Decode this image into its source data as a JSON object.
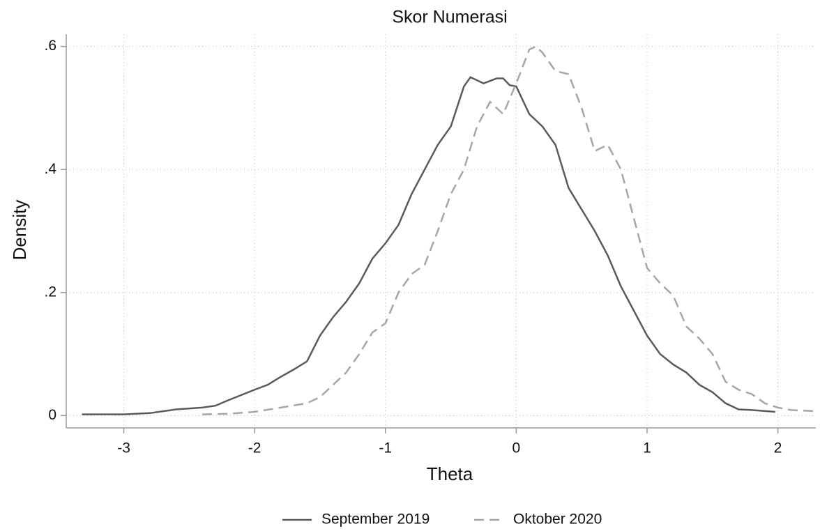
{
  "chart_data": {
    "type": "line",
    "title": "Skor Numerasi",
    "x_label": "Theta",
    "y_label": "Density",
    "xlim": [
      -3.44,
      2.29
    ],
    "ylim": [
      -0.02,
      0.62
    ],
    "xticks": [
      -3,
      -2,
      -1,
      0,
      1,
      2
    ],
    "yticks": [
      0,
      {
        "value": 0.2,
        "label": ".2"
      },
      {
        "value": 0.4,
        "label": ".4"
      },
      {
        "value": 0.6,
        "label": ".6"
      }
    ],
    "grid": true,
    "legend": "bottom",
    "series": [
      {
        "name": "September 2019",
        "color": "#5a5a5a",
        "style": "solid",
        "x": [
          -3.32,
          -3.0,
          -2.8,
          -2.6,
          -2.4,
          -2.3,
          -2.2,
          -2.0,
          -1.9,
          -1.8,
          -1.7,
          -1.6,
          -1.5,
          -1.4,
          -1.3,
          -1.2,
          -1.1,
          -1.0,
          -0.9,
          -0.8,
          -0.7,
          -0.6,
          -0.5,
          -0.4,
          -0.35,
          -0.25,
          -0.15,
          -0.1,
          -0.05,
          0.0,
          0.1,
          0.2,
          0.3,
          0.4,
          0.5,
          0.6,
          0.7,
          0.8,
          0.9,
          1.0,
          1.1,
          1.2,
          1.3,
          1.4,
          1.5,
          1.6,
          1.7,
          1.8,
          1.98
        ],
        "values": [
          0.002,
          0.002,
          0.004,
          0.01,
          0.013,
          0.016,
          0.025,
          0.042,
          0.05,
          0.063,
          0.075,
          0.088,
          0.13,
          0.16,
          0.185,
          0.215,
          0.255,
          0.28,
          0.31,
          0.36,
          0.4,
          0.44,
          0.47,
          0.535,
          0.55,
          0.54,
          0.548,
          0.548,
          0.537,
          0.535,
          0.49,
          0.47,
          0.44,
          0.37,
          0.335,
          0.3,
          0.26,
          0.21,
          0.17,
          0.13,
          0.1,
          0.083,
          0.07,
          0.05,
          0.038,
          0.02,
          0.01,
          0.009,
          0.006
        ]
      },
      {
        "name": "Oktober 2020",
        "color": "#a6a6a6",
        "style": "dashed",
        "x": [
          -2.4,
          -2.2,
          -2.0,
          -1.8,
          -1.6,
          -1.5,
          -1.4,
          -1.3,
          -1.2,
          -1.1,
          -1.0,
          -0.9,
          -0.8,
          -0.7,
          -0.6,
          -0.5,
          -0.4,
          -0.3,
          -0.2,
          -0.1,
          0.0,
          0.1,
          0.15,
          0.2,
          0.3,
          0.4,
          0.5,
          0.6,
          0.7,
          0.8,
          0.9,
          1.0,
          1.1,
          1.2,
          1.3,
          1.4,
          1.5,
          1.6,
          1.7,
          1.8,
          1.9,
          2.0,
          2.1,
          2.3
        ],
        "values": [
          0.002,
          0.003,
          0.006,
          0.013,
          0.02,
          0.03,
          0.05,
          0.07,
          0.1,
          0.135,
          0.15,
          0.2,
          0.23,
          0.245,
          0.3,
          0.36,
          0.4,
          0.47,
          0.51,
          0.49,
          0.54,
          0.595,
          0.6,
          0.59,
          0.56,
          0.555,
          0.5,
          0.43,
          0.44,
          0.4,
          0.32,
          0.24,
          0.215,
          0.195,
          0.145,
          0.125,
          0.1,
          0.055,
          0.042,
          0.035,
          0.02,
          0.013,
          0.009,
          0.007
        ]
      }
    ]
  }
}
